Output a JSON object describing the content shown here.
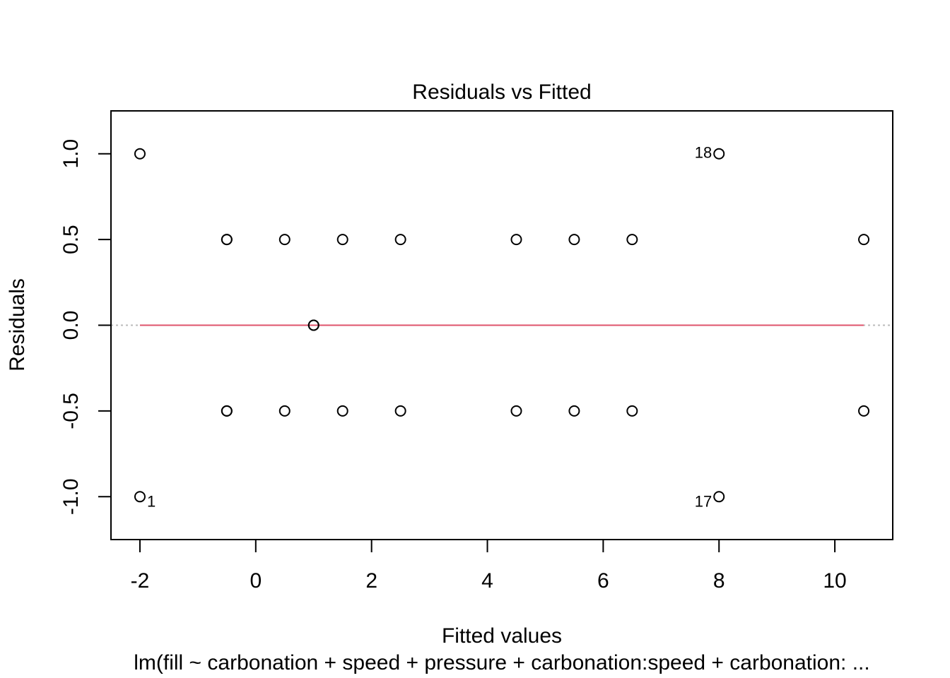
{
  "chart_data": {
    "type": "scatter",
    "title": "Residuals vs Fitted",
    "xlabel": "Fitted values",
    "ylabel": "Residuals",
    "subtitle": "lm(fill ~ carbonation + speed + pressure + carbonation:speed + carbonation: ...",
    "xlim": [
      -2.5,
      11
    ],
    "ylim": [
      -1.25,
      1.25
    ],
    "x_ticks": [
      -2,
      0,
      2,
      4,
      6,
      8,
      10
    ],
    "x_tick_labels": [
      "-2",
      "0",
      "2",
      "4",
      "6",
      "8",
      "10"
    ],
    "y_ticks": [
      -1.0,
      -0.5,
      0.0,
      0.5,
      1.0
    ],
    "y_tick_labels": [
      "-1.0",
      "-0.5",
      "0.0",
      "0.5",
      "1.0"
    ],
    "grid": false,
    "reference_line": {
      "y": 0,
      "color": "#bbbbbb",
      "style": "dotted"
    },
    "smooth_line": {
      "color": "#df536b",
      "x": [
        -2,
        10.5
      ],
      "y": [
        0,
        0
      ]
    },
    "points": [
      {
        "x": -2.0,
        "y": 1.0
      },
      {
        "x": -2.0,
        "y": -1.0,
        "label": "1"
      },
      {
        "x": -0.5,
        "y": 0.5
      },
      {
        "x": -0.5,
        "y": 0.5
      },
      {
        "x": -0.5,
        "y": -0.5
      },
      {
        "x": -0.5,
        "y": -0.5
      },
      {
        "x": 0.5,
        "y": 0.5
      },
      {
        "x": 0.5,
        "y": -0.5
      },
      {
        "x": 1.0,
        "y": 0.0
      },
      {
        "x": 1.0,
        "y": 0.0
      },
      {
        "x": 1.5,
        "y": 0.5
      },
      {
        "x": 1.5,
        "y": -0.5
      },
      {
        "x": 2.5,
        "y": 0.5
      },
      {
        "x": 2.5,
        "y": -0.5
      },
      {
        "x": 4.5,
        "y": 0.5
      },
      {
        "x": 4.5,
        "y": -0.5
      },
      {
        "x": 5.5,
        "y": 0.5
      },
      {
        "x": 5.5,
        "y": -0.5
      },
      {
        "x": 6.5,
        "y": 0.5
      },
      {
        "x": 6.5,
        "y": -0.5
      },
      {
        "x": 8.0,
        "y": 1.0,
        "label": "18"
      },
      {
        "x": 8.0,
        "y": -1.0,
        "label": "17"
      },
      {
        "x": 10.5,
        "y": 0.5
      },
      {
        "x": 10.5,
        "y": -0.5
      }
    ]
  }
}
